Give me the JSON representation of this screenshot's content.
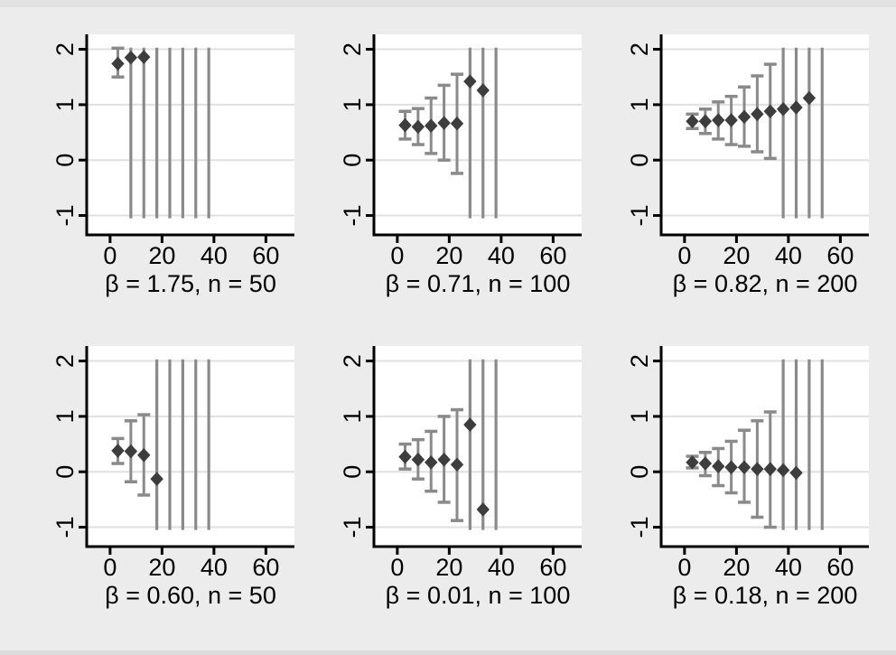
{
  "figure": {
    "background": "#ececec",
    "plot_background": "#ffffff",
    "grid_color": "#e0e0e0",
    "axis_color": "#000000",
    "tick_label_color": "#000000",
    "marker_color": "#3d3d3d",
    "ci_color": "#8a8a8a"
  },
  "chart_data": {
    "type": "scatter",
    "layout": "2 rows x 3 columns small multiples of point estimates with 95% confidence intervals",
    "marker": "diamond",
    "x_ticks": [
      0,
      20,
      40,
      60
    ],
    "y_ticks": [
      -1,
      0,
      1,
      2
    ],
    "xlim": [
      -9,
      71
    ],
    "ylim": [
      -1.35,
      2.27
    ],
    "ci_clip_range": [
      -1.05,
      2.03
    ],
    "grid": "horizontal gridlines at y ticks",
    "panels": [
      {
        "caption": "β = 1.75, n = 50",
        "beta": 1.75,
        "n": 50,
        "points": [
          {
            "x": 3,
            "est": 1.74,
            "lo": 1.5,
            "hi": 2.02
          },
          {
            "x": 8,
            "est": 1.85,
            "clipped": true
          },
          {
            "x": 13,
            "est": 1.86,
            "clipped": true
          },
          {
            "x": 18,
            "clipped": true
          },
          {
            "x": 23,
            "clipped": true
          },
          {
            "x": 28,
            "clipped": true
          },
          {
            "x": 33,
            "clipped": true
          },
          {
            "x": 38,
            "clipped": true
          }
        ]
      },
      {
        "caption": "β = 0.71, n = 100",
        "beta": 0.71,
        "n": 100,
        "points": [
          {
            "x": 3,
            "est": 0.63,
            "lo": 0.38,
            "hi": 0.88
          },
          {
            "x": 8,
            "est": 0.6,
            "lo": 0.28,
            "hi": 0.93
          },
          {
            "x": 13,
            "est": 0.62,
            "lo": 0.12,
            "hi": 1.12
          },
          {
            "x": 18,
            "est": 0.67,
            "lo": 0.0,
            "hi": 1.35
          },
          {
            "x": 23,
            "est": 0.66,
            "lo": -0.24,
            "hi": 1.55
          },
          {
            "x": 28,
            "est": 1.42,
            "clipped": true
          },
          {
            "x": 33,
            "est": 1.26,
            "clipped": true
          },
          {
            "x": 38,
            "clipped": true
          }
        ]
      },
      {
        "caption": "β = 0.82, n = 200",
        "beta": 0.82,
        "n": 200,
        "points": [
          {
            "x": 3,
            "est": 0.7,
            "lo": 0.57,
            "hi": 0.83
          },
          {
            "x": 8,
            "est": 0.7,
            "lo": 0.48,
            "hi": 0.92
          },
          {
            "x": 13,
            "est": 0.72,
            "lo": 0.38,
            "hi": 1.05
          },
          {
            "x": 18,
            "est": 0.72,
            "lo": 0.28,
            "hi": 1.15
          },
          {
            "x": 23,
            "est": 0.78,
            "lo": 0.25,
            "hi": 1.32
          },
          {
            "x": 28,
            "est": 0.83,
            "lo": 0.15,
            "hi": 1.52
          },
          {
            "x": 33,
            "est": 0.88,
            "lo": 0.03,
            "hi": 1.73
          },
          {
            "x": 38,
            "est": 0.92,
            "clipped": true
          },
          {
            "x": 43,
            "est": 0.95,
            "clipped": true
          },
          {
            "x": 48,
            "est": 1.12,
            "clipped": true
          },
          {
            "x": 53,
            "clipped": true
          }
        ]
      },
      {
        "caption": "β = 0.60, n = 50",
        "beta": 0.6,
        "n": 50,
        "points": [
          {
            "x": 3,
            "est": 0.38,
            "lo": 0.15,
            "hi": 0.6
          },
          {
            "x": 8,
            "est": 0.37,
            "lo": -0.18,
            "hi": 0.92
          },
          {
            "x": 13,
            "est": 0.3,
            "lo": -0.42,
            "hi": 1.03
          },
          {
            "x": 18,
            "est": -0.13,
            "clipped": true
          },
          {
            "x": 23,
            "clipped": true
          },
          {
            "x": 28,
            "clipped": true
          },
          {
            "x": 33,
            "clipped": true
          },
          {
            "x": 38,
            "clipped": true
          }
        ]
      },
      {
        "caption": "β = 0.01, n = 100",
        "beta": 0.01,
        "n": 100,
        "points": [
          {
            "x": 3,
            "est": 0.27,
            "lo": 0.05,
            "hi": 0.5
          },
          {
            "x": 8,
            "est": 0.22,
            "lo": -0.13,
            "hi": 0.58
          },
          {
            "x": 13,
            "est": 0.17,
            "lo": -0.35,
            "hi": 0.73
          },
          {
            "x": 18,
            "est": 0.22,
            "lo": -0.55,
            "hi": 1.0
          },
          {
            "x": 23,
            "est": 0.13,
            "lo": -0.88,
            "hi": 1.12
          },
          {
            "x": 28,
            "est": 0.85,
            "clipped": true
          },
          {
            "x": 33,
            "est": -0.68,
            "clipped": true
          },
          {
            "x": 38,
            "clipped": true
          }
        ]
      },
      {
        "caption": "β = 0.18, n = 200",
        "beta": 0.18,
        "n": 200,
        "points": [
          {
            "x": 3,
            "est": 0.17,
            "lo": 0.07,
            "hi": 0.28
          },
          {
            "x": 8,
            "est": 0.15,
            "lo": -0.07,
            "hi": 0.35
          },
          {
            "x": 13,
            "est": 0.1,
            "lo": -0.25,
            "hi": 0.42
          },
          {
            "x": 18,
            "est": 0.08,
            "lo": -0.38,
            "hi": 0.55
          },
          {
            "x": 23,
            "est": 0.08,
            "lo": -0.55,
            "hi": 0.75
          },
          {
            "x": 28,
            "est": 0.05,
            "lo": -0.82,
            "hi": 0.92
          },
          {
            "x": 33,
            "est": 0.05,
            "lo": -1.0,
            "hi": 1.08
          },
          {
            "x": 38,
            "est": 0.03,
            "clipped": true
          },
          {
            "x": 43,
            "est": -0.02,
            "clipped": true
          },
          {
            "x": 48,
            "clipped": true
          },
          {
            "x": 53,
            "clipped": true
          }
        ]
      }
    ]
  }
}
